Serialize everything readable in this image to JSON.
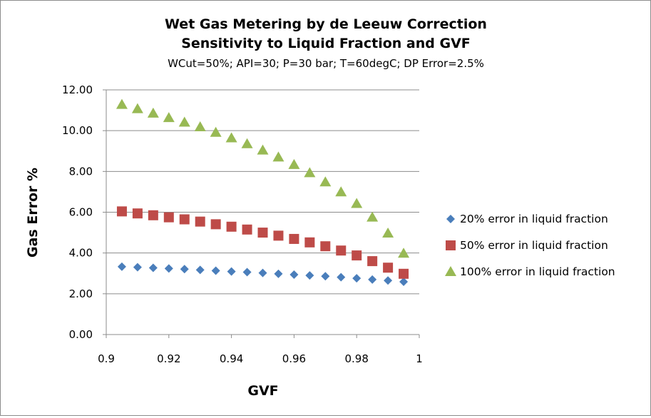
{
  "chart_data": {
    "type": "scatter",
    "title": "Wet Gas  Metering by de Leeuw Correction",
    "title_line2": "Sensitivity to Liquid Fraction and GVF",
    "subtitle": "WCut=50%;  API=30;  P=30 bar;  T=60degC;  DP Error=2.5%",
    "xlabel": "GVF",
    "ylabel": "Gas Error %",
    "xlim": [
      0.9,
      1.0
    ],
    "ylim": [
      0,
      12
    ],
    "x_ticks": [
      "0.9",
      "0.92",
      "0.94",
      "0.96",
      "0.98",
      "1"
    ],
    "y_ticks": [
      "0.00",
      "2.00",
      "4.00",
      "6.00",
      "8.00",
      "10.00",
      "12.00"
    ],
    "grid": "horizontal",
    "legend_position": "right",
    "x": [
      0.905,
      0.91,
      0.915,
      0.92,
      0.925,
      0.93,
      0.935,
      0.94,
      0.945,
      0.95,
      0.955,
      0.96,
      0.965,
      0.97,
      0.975,
      0.98,
      0.985,
      0.99,
      0.995
    ],
    "series": [
      {
        "name": "20% error in liquid fraction",
        "marker": "diamond",
        "color": "#4A7EBB",
        "values": [
          3.33,
          3.3,
          3.27,
          3.24,
          3.21,
          3.17,
          3.13,
          3.09,
          3.06,
          3.02,
          2.98,
          2.94,
          2.9,
          2.86,
          2.81,
          2.76,
          2.7,
          2.65,
          2.59
        ]
      },
      {
        "name": "50% error in liquid fraction",
        "marker": "square",
        "color": "#BE4B48",
        "values": [
          6.04,
          5.94,
          5.85,
          5.75,
          5.65,
          5.54,
          5.41,
          5.29,
          5.15,
          5.0,
          4.85,
          4.69,
          4.52,
          4.33,
          4.12,
          3.88,
          3.6,
          3.28,
          2.98
        ]
      },
      {
        "name": "100% error in liquid fraction",
        "marker": "triangle",
        "color": "#98B954",
        "values": [
          11.28,
          11.07,
          10.85,
          10.63,
          10.41,
          10.18,
          9.91,
          9.64,
          9.35,
          9.04,
          8.7,
          8.33,
          7.93,
          7.48,
          6.99,
          6.42,
          5.75,
          4.97,
          3.98
        ]
      }
    ]
  }
}
